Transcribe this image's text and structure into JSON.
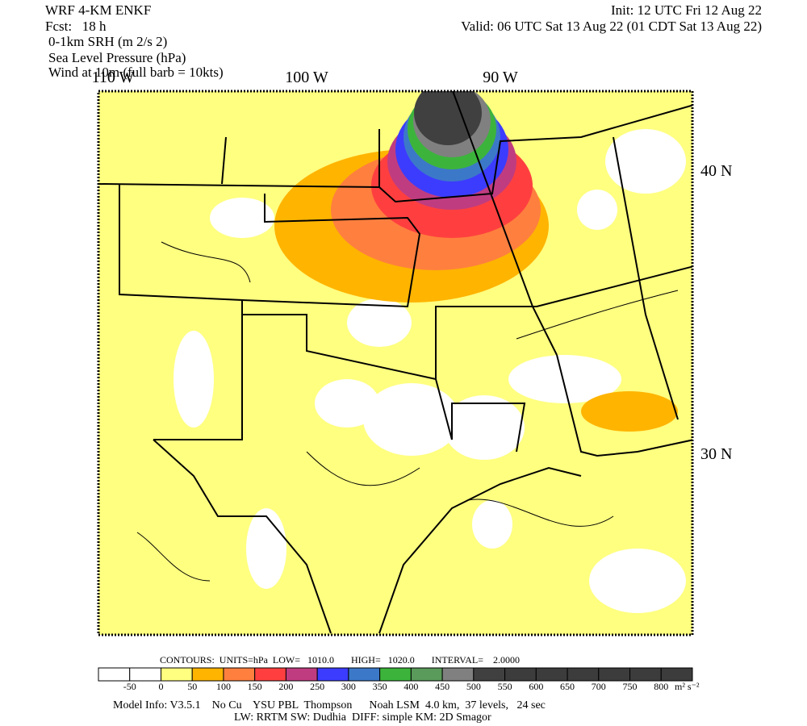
{
  "header": {
    "left": [
      "WRF 4-KM ENKF",
      "Fcst:   18 h",
      "0-1km SRH (m 2/s 2)",
      "Sea Level Pressure (hPa)",
      "Wind at 10m (full barb = 10kts)"
    ],
    "right": [
      "Init: 12 UTC Fri 12 Aug 22",
      "Valid: 06 UTC Sat 13 Aug 22 (01 CDT Sat 13 Aug 22)"
    ]
  },
  "map": {
    "lon_labels": [
      "110 W",
      "100 W",
      "90 W"
    ],
    "lat_labels": [
      "40 N",
      "30 N"
    ]
  },
  "contours": "CONTOURS:  UNITS=hPa  LOW=   1010.0       HIGH=   1020.0       INTERVAL=    2.0000",
  "colorbar": {
    "labels": [
      -50,
      0,
      50,
      100,
      150,
      200,
      250,
      300,
      350,
      400,
      450,
      500,
      550,
      600,
      650,
      700,
      750,
      800
    ],
    "units": "m² s⁻²",
    "colors": [
      "#ffffff",
      "#ffffff",
      "#ffff80",
      "#ffb400",
      "#ff7f3f",
      "#ff3f3f",
      "#c03c80",
      "#3c3cff",
      "#3c78c8",
      "#3cb43c",
      "#5a9a5a",
      "#808080",
      "#404040",
      "#3c3c3c",
      "#3c3c3c",
      "#3c3c3c",
      "#3c3c3c",
      "#3c3c3c",
      "#3c3c3c"
    ]
  },
  "footer": [
    "Model Info: V3.5.1    No Cu    YSU PBL  Thompson      Noah LSM  4.0 km,  37 levels,   24 sec",
    "LW: RRTM SW: Dudhia  DIFF: simple KM: 2D Smagor"
  ]
}
